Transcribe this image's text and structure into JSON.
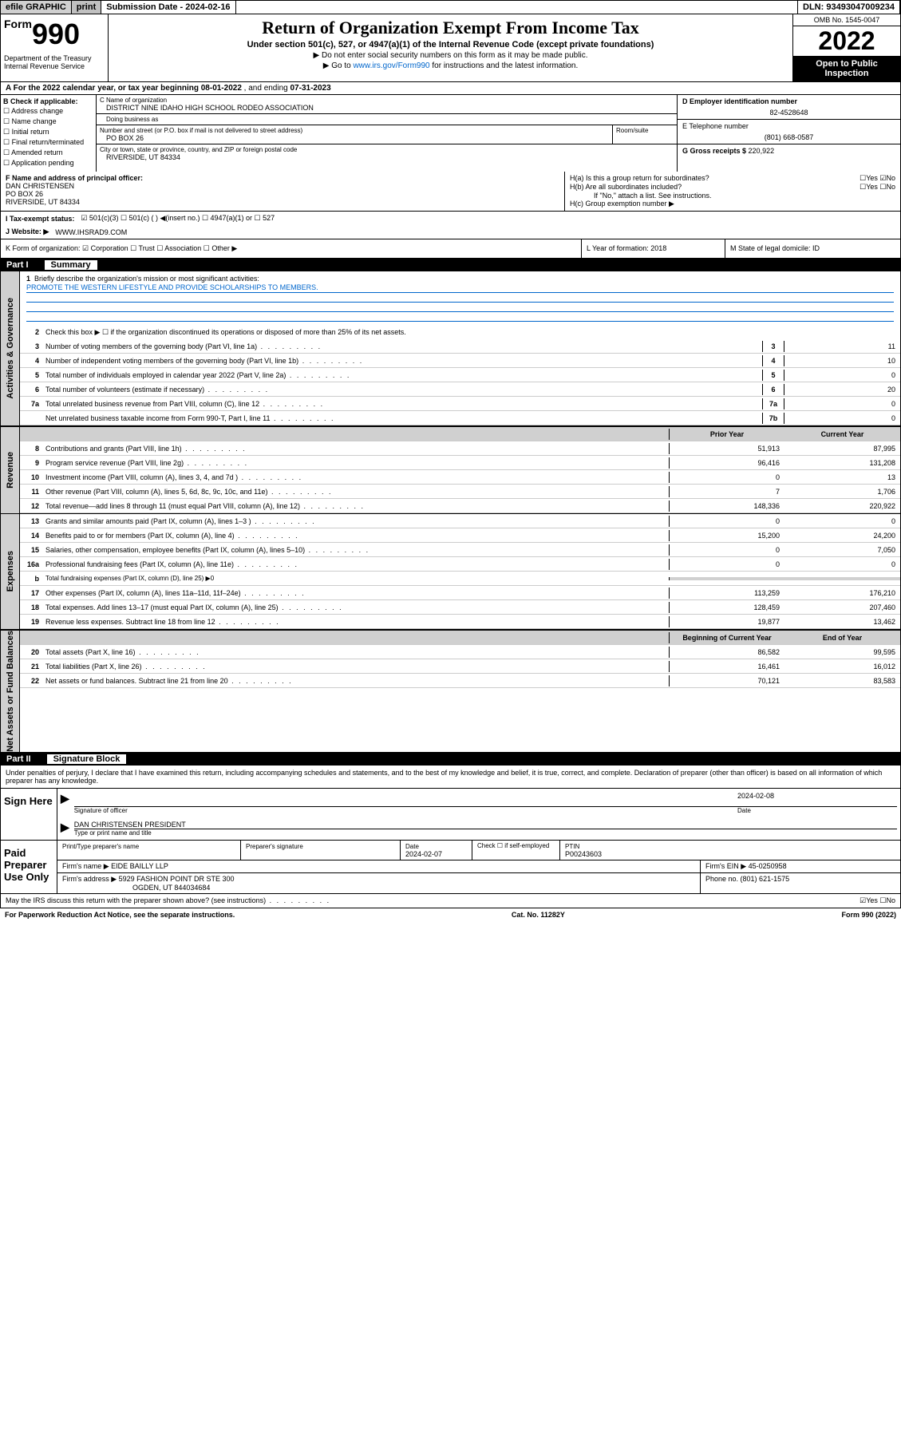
{
  "top": {
    "efile": "efile GRAPHIC",
    "print": "print",
    "submission_label": "Submission Date - ",
    "submission_date": "2024-02-16",
    "dln_label": "DLN: ",
    "dln": "93493047009234"
  },
  "header": {
    "form_prefix": "Form",
    "form_num": "990",
    "dept": "Department of the Treasury\nInternal Revenue Service",
    "title": "Return of Organization Exempt From Income Tax",
    "subtitle": "Under section 501(c), 527, or 4947(a)(1) of the Internal Revenue Code (except private foundations)",
    "instr1": "▶ Do not enter social security numbers on this form as it may be made public.",
    "instr2_pre": "▶ Go to ",
    "instr2_link": "www.irs.gov/Form990",
    "instr2_post": " for instructions and the latest information.",
    "omb": "OMB No. 1545-0047",
    "year": "2022",
    "open": "Open to Public Inspection"
  },
  "sectionA": {
    "text_pre": "A For the 2022 calendar year, or tax year beginning ",
    "begin": "08-01-2022",
    "text_mid": " , and ending ",
    "end": "07-31-2023"
  },
  "colB": {
    "header": "B Check if applicable:",
    "items": [
      "Address change",
      "Name change",
      "Initial return",
      "Final return/terminated",
      "Amended return",
      "Application pending"
    ]
  },
  "org": {
    "name_label": "C Name of organization",
    "name": "DISTRICT NINE IDAHO HIGH SCHOOL RODEO ASSOCIATION",
    "dba_label": "Doing business as",
    "addr_label": "Number and street (or P.O. box if mail is not delivered to street address)",
    "room_label": "Room/suite",
    "addr": "PO BOX 26",
    "city_label": "City or town, state or province, country, and ZIP or foreign postal code",
    "city": "RIVERSIDE, UT  84334"
  },
  "right": {
    "ein_label": "D Employer identification number",
    "ein": "82-4528648",
    "phone_label": "E Telephone number",
    "phone": "(801) 668-0587",
    "gross_label": "G Gross receipts $ ",
    "gross": "220,922"
  },
  "rowF": {
    "f_label": "F Name and address of principal officer:",
    "f_name": "DAN CHRISTENSEN",
    "f_addr1": "PO BOX 26",
    "f_addr2": "RIVERSIDE, UT  84334",
    "ha": "H(a)  Is this a group return for subordinates?",
    "ha_ans": "☐Yes ☑No",
    "hb": "H(b)  Are all subordinates included?",
    "hb_ans": "☐Yes ☐No",
    "hb_note": "If \"No,\" attach a list. See instructions.",
    "hc": "H(c)  Group exemption number ▶"
  },
  "rowI": {
    "label": "I  Tax-exempt status:",
    "opts": "☑ 501(c)(3)   ☐ 501(c) (  ) ◀(insert no.)   ☐ 4947(a)(1) or  ☐ 527"
  },
  "rowJ": {
    "label": "J  Website: ▶ ",
    "val": "WWW.IHSRAD9.COM"
  },
  "rowK": {
    "label": "K Form of organization:  ☑ Corporation ☐ Trust ☐ Association ☐ Other ▶",
    "l": "L Year of formation: 2018",
    "m": "M State of legal domicile: ID"
  },
  "part1": {
    "label": "Part I",
    "title": "Summary"
  },
  "mission": {
    "num": "1",
    "label": "Briefly describe the organization's mission or most significant activities:",
    "text": "PROMOTE THE WESTERN LIFESTYLE AND PROVIDE SCHOLARSHIPS TO MEMBERS."
  },
  "governance": {
    "side": "Activities & Governance",
    "line2": "Check this box ▶ ☐  if the organization discontinued its operations or disposed of more than 25% of its net assets.",
    "rows": [
      {
        "n": "3",
        "t": "Number of voting members of the governing body (Part VI, line 1a)",
        "b": "3",
        "v": "11"
      },
      {
        "n": "4",
        "t": "Number of independent voting members of the governing body (Part VI, line 1b)",
        "b": "4",
        "v": "10"
      },
      {
        "n": "5",
        "t": "Total number of individuals employed in calendar year 2022 (Part V, line 2a)",
        "b": "5",
        "v": "0"
      },
      {
        "n": "6",
        "t": "Total number of volunteers (estimate if necessary)",
        "b": "6",
        "v": "20"
      },
      {
        "n": "7a",
        "t": "Total unrelated business revenue from Part VIII, column (C), line 12",
        "b": "7a",
        "v": "0"
      },
      {
        "n": "",
        "t": "Net unrelated business taxable income from Form 990-T, Part I, line 11",
        "b": "7b",
        "v": "0"
      }
    ]
  },
  "twocol_header": {
    "prior": "Prior Year",
    "current": "Current Year"
  },
  "revenue": {
    "side": "Revenue",
    "rows": [
      {
        "n": "8",
        "t": "Contributions and grants (Part VIII, line 1h)",
        "p": "51,913",
        "c": "87,995"
      },
      {
        "n": "9",
        "t": "Program service revenue (Part VIII, line 2g)",
        "p": "96,416",
        "c": "131,208"
      },
      {
        "n": "10",
        "t": "Investment income (Part VIII, column (A), lines 3, 4, and 7d )",
        "p": "0",
        "c": "13"
      },
      {
        "n": "11",
        "t": "Other revenue (Part VIII, column (A), lines 5, 6d, 8c, 9c, 10c, and 11e)",
        "p": "7",
        "c": "1,706"
      },
      {
        "n": "12",
        "t": "Total revenue—add lines 8 through 11 (must equal Part VIII, column (A), line 12)",
        "p": "148,336",
        "c": "220,922"
      }
    ]
  },
  "expenses": {
    "side": "Expenses",
    "rows": [
      {
        "n": "13",
        "t": "Grants and similar amounts paid (Part IX, column (A), lines 1–3 )",
        "p": "0",
        "c": "0"
      },
      {
        "n": "14",
        "t": "Benefits paid to or for members (Part IX, column (A), line 4)",
        "p": "15,200",
        "c": "24,200"
      },
      {
        "n": "15",
        "t": "Salaries, other compensation, employee benefits (Part IX, column (A), lines 5–10)",
        "p": "0",
        "c": "7,050"
      },
      {
        "n": "16a",
        "t": "Professional fundraising fees (Part IX, column (A), line 11e)",
        "p": "0",
        "c": "0"
      },
      {
        "n": "b",
        "t": "Total fundraising expenses (Part IX, column (D), line 25) ▶0",
        "p": "",
        "c": "",
        "grey": true
      },
      {
        "n": "17",
        "t": "Other expenses (Part IX, column (A), lines 11a–11d, 11f–24e)",
        "p": "113,259",
        "c": "176,210"
      },
      {
        "n": "18",
        "t": "Total expenses. Add lines 13–17 (must equal Part IX, column (A), line 25)",
        "p": "128,459",
        "c": "207,460"
      },
      {
        "n": "19",
        "t": "Revenue less expenses. Subtract line 18 from line 12",
        "p": "19,877",
        "c": "13,462"
      }
    ]
  },
  "netassets_header": {
    "begin": "Beginning of Current Year",
    "end": "End of Year"
  },
  "netassets": {
    "side": "Net Assets or Fund Balances",
    "rows": [
      {
        "n": "20",
        "t": "Total assets (Part X, line 16)",
        "p": "86,582",
        "c": "99,595"
      },
      {
        "n": "21",
        "t": "Total liabilities (Part X, line 26)",
        "p": "16,461",
        "c": "16,012"
      },
      {
        "n": "22",
        "t": "Net assets or fund balances. Subtract line 21 from line 20",
        "p": "70,121",
        "c": "83,583"
      }
    ]
  },
  "part2": {
    "label": "Part II",
    "title": "Signature Block"
  },
  "sig_decl": "Under penalties of perjury, I declare that I have examined this return, including accompanying schedules and statements, and to the best of my knowledge and belief, it is true, correct, and complete. Declaration of preparer (other than officer) is based on all information of which preparer has any knowledge.",
  "sign": {
    "here": "Sign Here",
    "sig_label": "Signature of officer",
    "date_label": "Date",
    "date": "2024-02-08",
    "name": "DAN CHRISTENSEN  PRESIDENT",
    "name_label": "Type or print name and title"
  },
  "paid": {
    "label": "Paid Preparer Use Only",
    "h1": "Print/Type preparer's name",
    "h2": "Preparer's signature",
    "h3": "Date",
    "h3v": "2024-02-07",
    "h4": "Check ☐ if self-employed",
    "h5": "PTIN",
    "h5v": "P00243603",
    "firm_label": "Firm's name    ▶ ",
    "firm": "EIDE BAILLY LLP",
    "ein_label": "Firm's EIN ▶ ",
    "ein": "45-0250958",
    "addr_label": "Firm's address ▶ ",
    "addr1": "5929 FASHION POINT DR STE 300",
    "addr2": "OGDEN, UT  844034684",
    "phone_label": "Phone no. ",
    "phone": "(801) 621-1575"
  },
  "footer": {
    "discuss": "May the IRS discuss this return with the preparer shown above? (see instructions)",
    "discuss_ans": "☑Yes  ☐No",
    "paperwork": "For Paperwork Reduction Act Notice, see the separate instructions.",
    "cat": "Cat. No. 11282Y",
    "form": "Form 990 (2022)"
  }
}
